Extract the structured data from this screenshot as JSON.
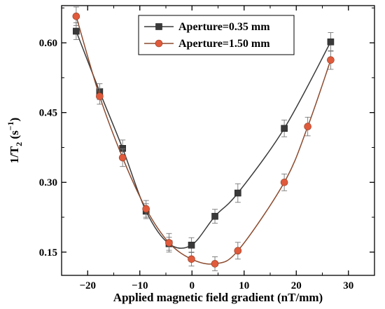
{
  "chart_data": {
    "type": "scatter",
    "xlabel": "Applied magnetic field gradient (nT/mm)",
    "ylabel": "1/T₂ (s⁻¹)",
    "xlim": [
      -25,
      35
    ],
    "ylim": [
      0.1,
      0.68
    ],
    "xticks": [
      -20,
      -10,
      0,
      10,
      20,
      30
    ],
    "yticks": [
      0.15,
      0.3,
      0.45,
      0.6
    ],
    "ytick_labels": [
      "0.15",
      "0.30",
      "0.45",
      "0.60"
    ],
    "xtick_labels": [
      "−20",
      "−10",
      "0",
      "10",
      "20",
      "30"
    ],
    "legend_position": "top-center",
    "grid": false,
    "series": [
      {
        "name": "Aperture=0.35 mm",
        "marker": "square",
        "color": "#3a3a3a",
        "line_color": "#3a3a3a",
        "x": [
          -22.2,
          -17.7,
          -13.3,
          -8.8,
          -4.4,
          -0.1,
          4.4,
          8.8,
          17.7,
          26.6
        ],
        "y": [
          0.625,
          0.495,
          0.373,
          0.238,
          0.168,
          0.165,
          0.227,
          0.277,
          0.416,
          0.602
        ],
        "err": [
          0.018,
          0.017,
          0.018,
          0.016,
          0.014,
          0.016,
          0.015,
          0.02,
          0.018,
          0.02
        ],
        "fit_curve": true
      },
      {
        "name": "Aperture=1.50 mm",
        "marker": "circle",
        "color": "#e05a3c",
        "line_color": "#8c4a2e",
        "x": [
          -22.2,
          -17.7,
          -13.3,
          -8.8,
          -4.4,
          -0.1,
          4.4,
          8.8,
          17.7,
          22.2,
          26.6
        ],
        "y": [
          0.657,
          0.485,
          0.353,
          0.243,
          0.17,
          0.135,
          0.125,
          0.153,
          0.3,
          0.42,
          0.563
        ],
        "err": [
          0.02,
          0.017,
          0.019,
          0.018,
          0.02,
          0.015,
          0.015,
          0.018,
          0.018,
          0.02,
          0.02
        ],
        "fit_curve": true
      }
    ]
  }
}
